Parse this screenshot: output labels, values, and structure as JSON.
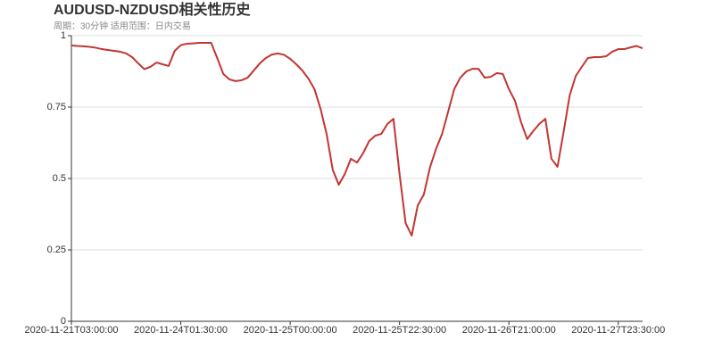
{
  "chart_data": {
    "type": "line",
    "title": "AUDUSD-NZDUSD相关性历史",
    "subtitle": "周期：30分钟 适用范围：日内交易",
    "categories": [
      "2020-11-21T03:00:00",
      null,
      null,
      null,
      null,
      null,
      null,
      null,
      null,
      null,
      null,
      null,
      null,
      null,
      null,
      null,
      null,
      null,
      "2020-11-24T01:30:00",
      null,
      null,
      null,
      null,
      null,
      null,
      null,
      null,
      null,
      null,
      null,
      null,
      null,
      null,
      null,
      null,
      null,
      "2020-11-25T00:00:00",
      null,
      null,
      null,
      null,
      null,
      null,
      null,
      null,
      null,
      null,
      null,
      null,
      null,
      null,
      null,
      null,
      null,
      "2020-11-25T22:30:00",
      null,
      null,
      null,
      null,
      null,
      null,
      null,
      null,
      null,
      null,
      null,
      null,
      null,
      null,
      null,
      null,
      null,
      "2020-11-26T21:00:00",
      null,
      null,
      null,
      null,
      null,
      null,
      null,
      null,
      null,
      null,
      null,
      null,
      null,
      null,
      null,
      null,
      null,
      "2020-11-27T23:30:00",
      null,
      null,
      null,
      null
    ],
    "values": [
      0.966,
      0.964,
      0.963,
      0.961,
      0.958,
      0.953,
      0.95,
      0.947,
      0.944,
      0.938,
      0.925,
      0.903,
      0.883,
      0.891,
      0.906,
      0.9,
      0.894,
      0.947,
      0.967,
      0.972,
      0.973,
      0.975,
      0.975,
      0.975,
      0.922,
      0.866,
      0.847,
      0.841,
      0.844,
      0.853,
      0.878,
      0.903,
      0.922,
      0.934,
      0.938,
      0.933,
      0.919,
      0.9,
      0.878,
      0.85,
      0.813,
      0.744,
      0.656,
      0.531,
      0.478,
      0.516,
      0.569,
      0.556,
      0.588,
      0.631,
      0.65,
      0.656,
      0.691,
      0.709,
      0.516,
      0.344,
      0.3,
      0.406,
      0.444,
      0.538,
      0.603,
      0.656,
      0.734,
      0.813,
      0.853,
      0.875,
      0.884,
      0.884,
      0.853,
      0.856,
      0.869,
      0.866,
      0.813,
      0.772,
      0.697,
      0.638,
      0.666,
      0.691,
      0.709,
      0.569,
      0.541,
      0.663,
      0.791,
      0.859,
      0.891,
      0.922,
      0.925,
      0.925,
      0.928,
      0.944,
      0.953,
      0.953,
      0.959,
      0.964,
      0.956
    ],
    "color": "#c23531",
    "ylim": [
      0,
      1
    ],
    "yticks": [
      0,
      0.25,
      0.5,
      0.75,
      1
    ],
    "grid": true
  }
}
